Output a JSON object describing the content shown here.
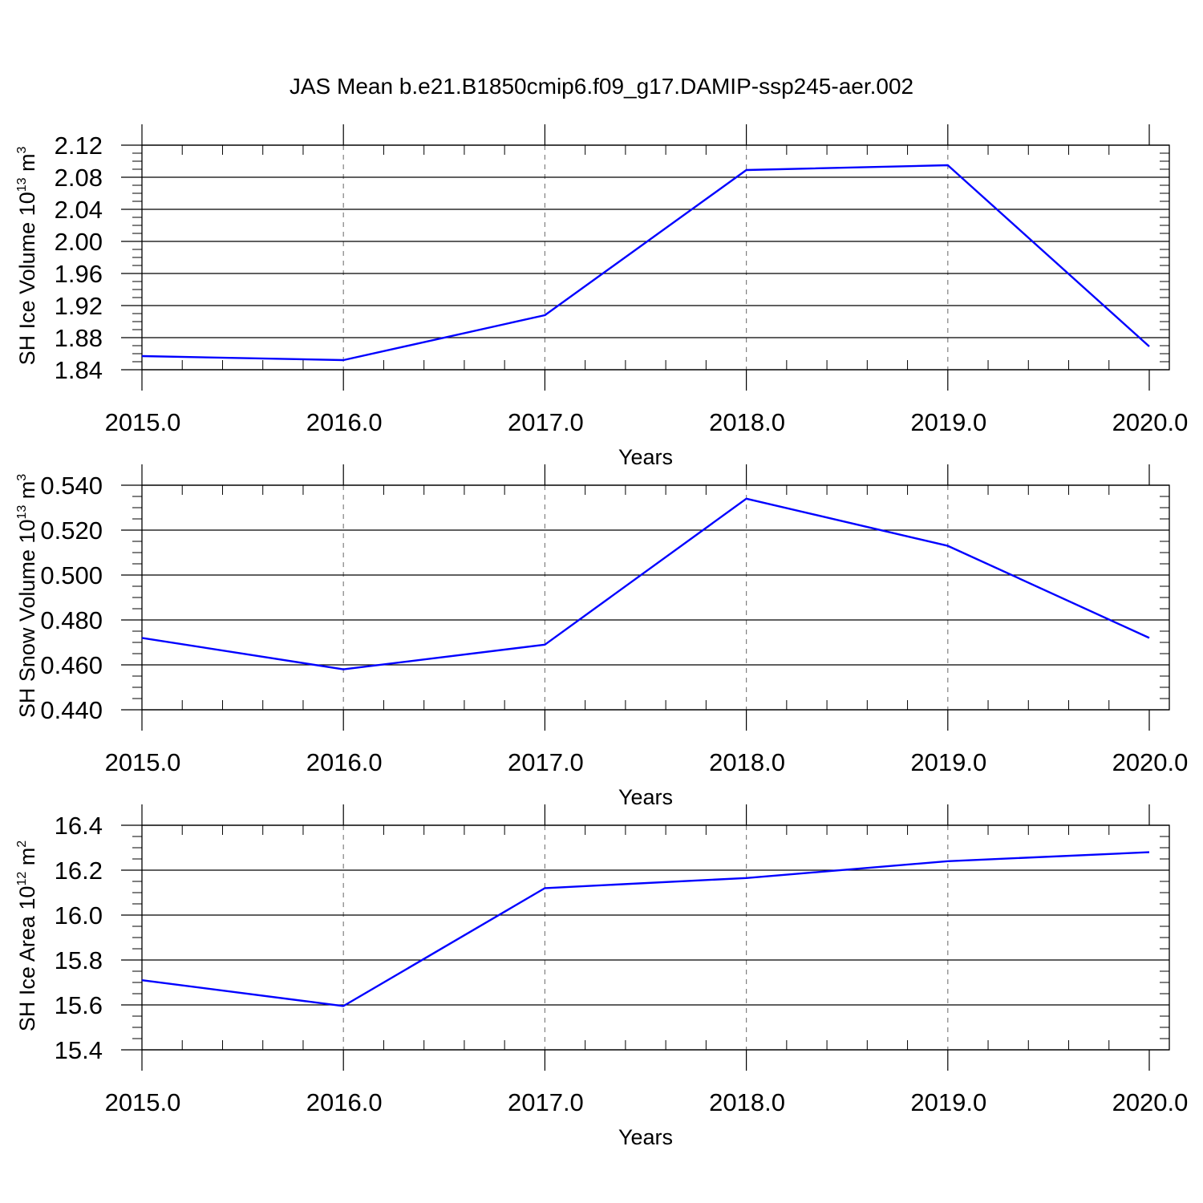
{
  "figure": {
    "title": "JAS Mean b.e21.B1850cmip6.f09_g17.DAMIP-ssp245-aer.002"
  },
  "colors": {
    "series_line": "#0000ff",
    "frame": "#000000",
    "grid": "#808080",
    "background": "#ffffff"
  },
  "chart_data": [
    {
      "type": "line",
      "title": "",
      "xlabel": "Years",
      "ylabel": {
        "main": "SH Ice Volume 10",
        "exp": "13",
        "unit": " m",
        "unit_exp": "3"
      },
      "x": [
        2015,
        2016,
        2017,
        2018,
        2019,
        2020
      ],
      "x_ticks": [
        "2015.0",
        "2016.0",
        "2017.0",
        "2018.0",
        "2019.0",
        "2020.0"
      ],
      "xlim": [
        2015,
        2020
      ],
      "ylim": [
        1.84,
        2.12
      ],
      "y_ticks": [
        "1.84",
        "1.88",
        "1.92",
        "1.96",
        "2.00",
        "2.04",
        "2.08",
        "2.12"
      ],
      "y_tick_values": [
        1.84,
        1.88,
        1.92,
        1.96,
        2.0,
        2.04,
        2.08,
        2.12
      ],
      "y_minor_step": 0.01,
      "series": [
        {
          "values": [
            1.857,
            1.852,
            1.908,
            2.089,
            2.095,
            1.869
          ]
        }
      ],
      "grid": "vertical dashed at major x ticks"
    },
    {
      "type": "line",
      "title": "",
      "xlabel": "Years",
      "ylabel": {
        "main": "SH Snow Volume 10",
        "exp": "13",
        "unit": " m",
        "unit_exp": "3"
      },
      "x": [
        2015,
        2016,
        2017,
        2018,
        2019,
        2020
      ],
      "x_ticks": [
        "2015.0",
        "2016.0",
        "2017.0",
        "2018.0",
        "2019.0",
        "2020.0"
      ],
      "xlim": [
        2015,
        2020
      ],
      "ylim": [
        0.44,
        0.54
      ],
      "y_ticks": [
        "0.440",
        "0.460",
        "0.480",
        "0.500",
        "0.520",
        "0.540"
      ],
      "y_tick_values": [
        0.44,
        0.46,
        0.48,
        0.5,
        0.52,
        0.54
      ],
      "y_minor_step": 0.005,
      "series": [
        {
          "values": [
            0.472,
            0.458,
            0.469,
            0.534,
            0.513,
            0.472
          ]
        }
      ],
      "grid": "vertical dashed at major x ticks"
    },
    {
      "type": "line",
      "title": "",
      "xlabel": "Years",
      "ylabel": {
        "main": "SH Ice Area 10",
        "exp": "12",
        "unit": " m",
        "unit_exp": "2"
      },
      "x": [
        2015,
        2016,
        2017,
        2018,
        2019,
        2020
      ],
      "x_ticks": [
        "2015.0",
        "2016.0",
        "2017.0",
        "2018.0",
        "2019.0",
        "2020.0"
      ],
      "xlim": [
        2015,
        2020
      ],
      "ylim": [
        15.4,
        16.4
      ],
      "y_ticks": [
        "15.4",
        "15.6",
        "15.8",
        "16.0",
        "16.2",
        "16.4"
      ],
      "y_tick_values": [
        15.4,
        15.6,
        15.8,
        16.0,
        16.2,
        16.4
      ],
      "y_minor_step": 0.05,
      "series": [
        {
          "values": [
            15.71,
            15.595,
            16.12,
            16.165,
            16.24,
            16.28
          ]
        }
      ],
      "grid": "vertical dashed at major x ticks"
    }
  ]
}
